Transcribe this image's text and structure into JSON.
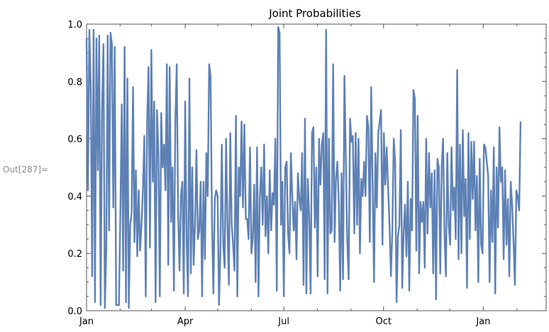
{
  "cell_label": "Out[287]=",
  "colors": {
    "line": "#5E81B5",
    "frame": "#555555",
    "text": "#000000",
    "cell_label": "#8E8E8E"
  },
  "chart_data": {
    "type": "line",
    "title": "Joint Probabilities",
    "xlabel": "",
    "ylabel": "",
    "ylim": [
      0.0,
      1.0
    ],
    "xlim": [
      "2024-01-01",
      "2025-02-28"
    ],
    "grid": false,
    "y_ticks": [
      0.0,
      0.2,
      0.4,
      0.6,
      0.8,
      1.0
    ],
    "y_tick_labels": [
      "0.0",
      "0.2",
      "0.4",
      "0.6",
      "0.8",
      "1.0"
    ],
    "x_tick_labels": [
      "Jan",
      "Apr",
      "Jul",
      "Oct",
      "Jan"
    ],
    "x_tick_dates": [
      "2024-01-01",
      "2024-04-01",
      "2024-07-01",
      "2024-10-01",
      "2025-01-01"
    ],
    "series": [
      {
        "start": "2024-01-01",
        "step_days": 1.3,
        "values": [
          0.95,
          0.42,
          0.98,
          0.78,
          0.12,
          0.98,
          0.03,
          0.95,
          0.49,
          0.96,
          0.02,
          0.7,
          0.93,
          0.01,
          0.21,
          0.96,
          0.28,
          0.97,
          0.93,
          0.36,
          0.92,
          0.02,
          0.02,
          0.02,
          0.34,
          0.72,
          0.14,
          0.92,
          0.03,
          0.81,
          0.01,
          0.3,
          0.34,
          0.78,
          0.24,
          0.49,
          0.19,
          0.42,
          0.21,
          0.3,
          0.42,
          0.61,
          0.05,
          0.66,
          0.85,
          0.22,
          0.91,
          0.45,
          0.73,
          0.03,
          0.7,
          0.55,
          0.05,
          0.69,
          0.5,
          0.58,
          0.42,
          0.86,
          0.16,
          0.85,
          0.31,
          0.5,
          0.07,
          0.66,
          0.86,
          0.34,
          0.14,
          0.4,
          0.45,
          0.06,
          0.73,
          0.25,
          0.05,
          0.81,
          0.13,
          0.5,
          0.16,
          0.3,
          0.56,
          0.25,
          0.28,
          0.45,
          0.05,
          0.45,
          0.18,
          0.55,
          0.4,
          0.86,
          0.82,
          0.32,
          0.06,
          0.39,
          0.42,
          0.4,
          0.02,
          0.21,
          0.58,
          0.23,
          0.15,
          0.6,
          0.3,
          0.09,
          0.62,
          0.3,
          0.23,
          0.14,
          0.68,
          0.05,
          0.5,
          0.4,
          0.66,
          0.36,
          0.65,
          0.32,
          0.32,
          0.25,
          0.57,
          0.2,
          0.25,
          0.44,
          0.1,
          0.57,
          0.05,
          0.4,
          0.5,
          0.3,
          0.58,
          0.26,
          0.4,
          0.2,
          0.49,
          0.28,
          0.41,
          0.37,
          0.6,
          0.07,
          0.99,
          0.97,
          0.3,
          0.45,
          0.05,
          0.5,
          0.52,
          0.27,
          0.2,
          0.55,
          0.4,
          0.28,
          0.38,
          0.18,
          0.48,
          0.39,
          0.35,
          0.55,
          0.09,
          0.67,
          0.06,
          0.46,
          0.33,
          0.06,
          0.62,
          0.64,
          0.29,
          0.5,
          0.12,
          0.6,
          0.44,
          0.58,
          0.62,
          0.11,
          0.98,
          0.06,
          0.6,
          0.27,
          0.28,
          0.86,
          0.24,
          0.46,
          0.52,
          0.38,
          0.07,
          0.48,
          0.11,
          0.82,
          0.53,
          0.24,
          0.11,
          0.67,
          0.59,
          0.61,
          0.27,
          0.62,
          0.3,
          0.6,
          0.2,
          0.46,
          0.4,
          0.52,
          0.4,
          0.68,
          0.64,
          0.24,
          0.78,
          0.45,
          0.1,
          0.55,
          0.36,
          0.62,
          0.66,
          0.7,
          0.23,
          0.62,
          0.44,
          0.57,
          0.43,
          0.3,
          0.12,
          0.28,
          0.6,
          0.52,
          0.03,
          0.26,
          0.3,
          0.63,
          0.08,
          0.27,
          0.37,
          0.19,
          0.45,
          0.07,
          0.39,
          0.28,
          0.77,
          0.74,
          0.21,
          0.68,
          0.13,
          0.38,
          0.31,
          0.38,
          0.15,
          0.6,
          0.27,
          0.55,
          0.36,
          0.48,
          0.13,
          0.49,
          0.04,
          0.53,
          0.5,
          0.13,
          0.5,
          0.6,
          0.27,
          0.12,
          0.55,
          0.3,
          0.23,
          0.57,
          0.35,
          0.43,
          0.25,
          0.84,
          0.18,
          0.58,
          0.2,
          0.63,
          0.33,
          0.46,
          0.08,
          0.62,
          0.25,
          0.59,
          0.39,
          0.59,
          0.28,
          0.47,
          0.1,
          0.53,
          0.23,
          0.2,
          0.58,
          0.57,
          0.52,
          0.47,
          0.1,
          0.42,
          0.24,
          0.57,
          0.06,
          0.5,
          0.29,
          0.64,
          0.45,
          0.5,
          0.18,
          0.49,
          0.23,
          0.39,
          0.12,
          0.45,
          0.37,
          0.24,
          0.09,
          0.42,
          0.4,
          0.35,
          0.66
        ]
      }
    ]
  }
}
